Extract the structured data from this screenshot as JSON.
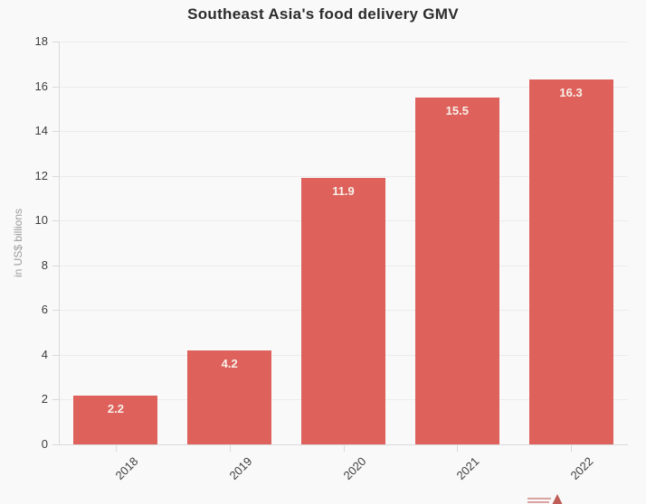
{
  "title": "Southeast Asia's food delivery GMV",
  "chart_data": {
    "type": "bar",
    "title": "Southeast Asia's food delivery GMV",
    "categories": [
      "2018",
      "2019",
      "2020",
      "2021",
      "2022"
    ],
    "values": [
      2.2,
      4.2,
      11.9,
      15.5,
      16.3
    ],
    "bar_labels": [
      "2.2",
      "4.2",
      "11.9",
      "15.5",
      "16.3"
    ],
    "xlabel": "",
    "ylabel": "in US$ billions",
    "ylim": [
      0,
      18
    ],
    "ytick_step": 2,
    "ytick_labels": [
      "0",
      "2",
      "4",
      "6",
      "8",
      "10",
      "12",
      "14",
      "16",
      "18"
    ],
    "grid": "horizontal",
    "legend": false,
    "bar_label_position": "inside-top",
    "xtick_label_rotation_deg": -45
  },
  "colors": {
    "background": "#f9f9f9",
    "bar": "#de615c",
    "bar_label": "#f7f1e8",
    "title": "#2b2b2b",
    "tick_label": "#3d3d3d",
    "axis_label": "#9b9b9b",
    "gridline": "#ececec",
    "axis_line": "#d9d9d9",
    "logo_red": "#b5433e"
  },
  "icons": {
    "logo_fragment": "partial-brand-logo-cut-off-at-bottom-edge"
  }
}
